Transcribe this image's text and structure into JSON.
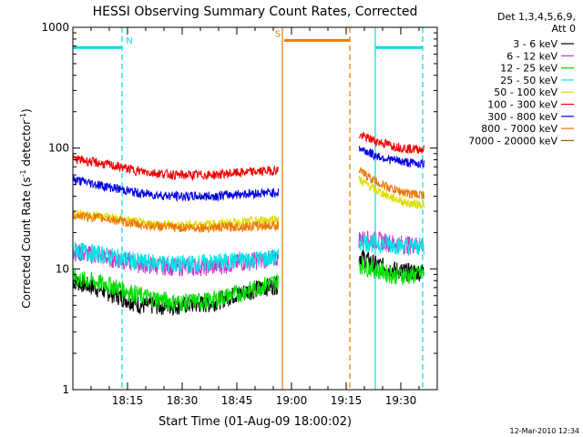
{
  "chart_data": {
    "type": "line",
    "title": "HESSI Observing Summary Count Rates, Corrected",
    "xlabel": "Start Time (01-Aug-09 18:00:02)",
    "ylabel_main": "Corrected Count Rate (s",
    "ylabel_sup1": "-1",
    "ylabel_mid": " detector",
    "ylabel_sup2": "-1",
    "ylabel_end": ")",
    "y_scale": "log",
    "ylim": [
      1,
      1000
    ],
    "xlim_minutes": [
      0,
      100
    ],
    "x_ticks": [
      {
        "label": "18:15",
        "minute": 15
      },
      {
        "label": "18:30",
        "minute": 30
      },
      {
        "label": "18:45",
        "minute": 45
      },
      {
        "label": "19:00",
        "minute": 60
      },
      {
        "label": "19:15",
        "minute": 75
      },
      {
        "label": "19:30",
        "minute": 90
      }
    ],
    "y_ticks": [
      {
        "label": "1",
        "value": 1
      },
      {
        "label": "10",
        "value": 10
      },
      {
        "label": "100",
        "value": 100
      },
      {
        "label": "1000",
        "value": 1000
      }
    ],
    "legend_header": [
      "Det 1,3,4,5,6,9,",
      "Att 0"
    ],
    "legend_placement": "right",
    "series": [
      {
        "name": "3 - 6 keV",
        "color": "#000000",
        "seg1": [
          8.0,
          6.5,
          5.0,
          5.0,
          5.2,
          6.5,
          7.5
        ],
        "seg2": [
          13.0,
          11.0,
          10.0,
          9.5,
          9.5
        ]
      },
      {
        "name": "6 - 12 keV",
        "color": "#cc33cc",
        "seg1": [
          14.0,
          12.5,
          11.0,
          10.5,
          10.5,
          11.5,
          12.5
        ],
        "seg2": [
          18.0,
          17.5,
          16.5,
          16.0,
          16.0
        ]
      },
      {
        "name": "12 - 25 keV",
        "color": "#00dd00",
        "seg1": [
          8.5,
          7.5,
          6.0,
          5.3,
          5.5,
          6.5,
          8.0
        ],
        "seg2": [
          11.0,
          10.0,
          9.0,
          8.8,
          9.2
        ]
      },
      {
        "name": "25 - 50 keV",
        "color": "#00e5e5",
        "seg1": [
          14.5,
          13.0,
          11.5,
          11.0,
          11.3,
          12.0,
          12.5
        ],
        "seg2": [
          17.0,
          16.5,
          16.0,
          15.5,
          15.5
        ]
      },
      {
        "name": "50 - 100 keV",
        "color": "#dddd00",
        "seg1": [
          29.0,
          27.0,
          24.0,
          23.0,
          23.5,
          24.5,
          26.0
        ],
        "seg2": [
          55.0,
          45.0,
          39.0,
          35.0,
          34.0
        ]
      },
      {
        "name": "100 - 300 keV",
        "color": "#ee0000",
        "seg1": [
          82.0,
          73.0,
          64.0,
          60.0,
          60.0,
          63.0,
          66.0
        ],
        "seg2": [
          128.0,
          115.0,
          105.0,
          99.0,
          98.0
        ]
      },
      {
        "name": "300 - 800 keV",
        "color": "#0000dd",
        "seg1": [
          55.0,
          48.0,
          42.0,
          40.0,
          40.0,
          42.0,
          43.0
        ],
        "seg2": [
          100.0,
          87.0,
          80.0,
          76.0,
          74.0
        ]
      },
      {
        "name": "800 - 7000 keV",
        "color": "#ee7700",
        "seg1": [
          28.0,
          26.0,
          23.0,
          22.0,
          22.0,
          22.5,
          23.0
        ],
        "seg2": [
          65.0,
          53.0,
          46.0,
          42.0,
          41.0
        ]
      },
      {
        "name": "7000 - 20000 keV",
        "color": "#886600",
        "seg1": [],
        "seg2": []
      }
    ],
    "segment1_minutes": [
      0,
      56.5
    ],
    "segment2_minutes": [
      78.5,
      96.5
    ],
    "markers": [
      {
        "label": "N",
        "color": "#00dddd",
        "bar_start": 0,
        "bar_end": 13.5,
        "bar_value": 680,
        "dashed_line": 13.5
      },
      {
        "label": "S",
        "color": "#ee7700",
        "bar_start": 58,
        "bar_end": 76,
        "bar_value": 780,
        "solid_line": 57.5,
        "dashed_line": 76
      },
      {
        "label": "",
        "color": "#00dddd",
        "bar_start": 83,
        "bar_end": 96,
        "bar_value": 680,
        "solid_line": 83,
        "dashed_line": 96
      }
    ]
  },
  "footer": {
    "timestamp": "12-Mar-2010 12:34"
  }
}
